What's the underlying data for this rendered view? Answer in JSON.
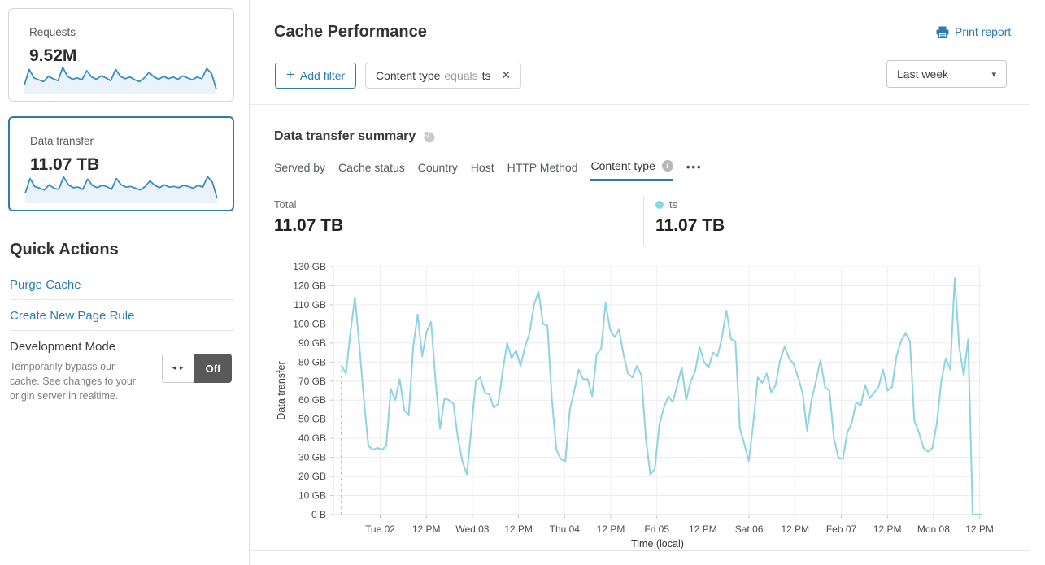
{
  "app": {
    "accent": "#2c7cb0",
    "chart_line_color": "#8ed3e4",
    "sparkline_color": "#3b8dc4"
  },
  "icons": {
    "plus_glyph": "+",
    "close_glyph": "✕",
    "caret_glyph": "▾",
    "toggle_arrows_glyph": "◂ ▸",
    "more_glyph": "•••",
    "info_glyph": "i"
  },
  "sidebar": {
    "cards": [
      {
        "label": "Requests",
        "value": "9.52M",
        "selected": false,
        "sparkline": [
          30,
          85,
          55,
          48,
          42,
          60,
          52,
          45,
          92,
          60,
          50,
          55,
          48,
          80,
          58,
          50,
          62,
          55,
          45,
          85,
          60,
          52,
          58,
          48,
          42,
          55,
          75,
          58,
          50,
          60,
          52,
          58,
          50,
          62,
          55,
          48,
          58,
          52,
          88,
          70,
          15
        ]
      },
      {
        "label": "Data transfer",
        "value": "11.07 TB",
        "selected": true,
        "sparkline": [
          32,
          84,
          56,
          50,
          44,
          62,
          50,
          46,
          90,
          62,
          52,
          54,
          46,
          82,
          60,
          52,
          60,
          56,
          46,
          84,
          62,
          54,
          56,
          50,
          44,
          56,
          76,
          60,
          52,
          62,
          54,
          56,
          52,
          60,
          56,
          50,
          60,
          54,
          90,
          72,
          14
        ]
      }
    ],
    "quick_actions": {
      "title": "Quick Actions",
      "links": [
        {
          "label": "Purge Cache"
        },
        {
          "label": "Create New Page Rule"
        }
      ],
      "development_mode": {
        "title": "Development Mode",
        "description": "Temporarily bypass our cache. See changes to your origin server in realtime.",
        "toggle_state": "Off"
      }
    }
  },
  "main": {
    "title": "Cache Performance",
    "print_report_label": "Print report",
    "filters": {
      "add_label": "Add filter",
      "chip": {
        "field": "Content type",
        "operator": "equals",
        "value": "ts"
      }
    },
    "time_range_selected": "Last week",
    "summary": {
      "title": "Data transfer summary",
      "tabs": [
        "Served by",
        "Cache status",
        "Country",
        "Host",
        "HTTP Method",
        "Content type"
      ],
      "active_tab": "Content type",
      "total": {
        "label": "Total",
        "value": "11.07 TB"
      },
      "legend": {
        "label": "ts",
        "value": "11.07 TB"
      }
    }
  },
  "chart_data": {
    "type": "line",
    "title": "Data transfer summary — ts",
    "xlabel": "Time (local)",
    "ylabel": "Data transfer",
    "unit": "GB",
    "ylim": [
      0,
      130
    ],
    "grid": true,
    "leading_gap_dashed": true,
    "y_ticks": [
      "0 B",
      "10 GB",
      "20 GB",
      "30 GB",
      "40 GB",
      "50 GB",
      "60 GB",
      "70 GB",
      "80 GB",
      "90 GB",
      "100 GB",
      "110 GB",
      "120 GB",
      "130 GB"
    ],
    "x_ticks": [
      "Tue 02",
      "12 PM",
      "Wed 03",
      "12 PM",
      "Thu 04",
      "12 PM",
      "Fri 05",
      "12 PM",
      "Sat 06",
      "12 PM",
      "Feb 07",
      "12 PM",
      "Mon 08",
      "12 PM"
    ],
    "series": [
      {
        "name": "ts",
        "values": [
          78,
          74,
          96,
          114,
          88,
          60,
          36,
          34,
          35,
          34,
          36,
          66,
          60,
          71,
          55,
          52,
          88,
          105,
          83,
          96,
          101,
          70,
          45,
          61,
          60,
          58,
          40,
          28,
          21,
          45,
          70,
          72,
          64,
          63,
          56,
          58,
          75,
          90,
          82,
          86,
          78,
          88,
          95,
          110,
          117,
          100,
          99,
          60,
          34,
          29,
          28,
          55,
          65,
          76,
          71,
          71,
          62,
          84,
          87,
          111,
          97,
          93,
          97,
          84,
          74,
          72,
          78,
          73,
          40,
          21,
          24,
          47,
          56,
          62,
          59,
          68,
          77,
          60,
          70,
          75,
          88,
          80,
          77,
          85,
          83,
          93,
          107,
          92,
          91,
          45,
          37,
          28,
          48,
          72,
          69,
          74,
          64,
          68,
          81,
          88,
          82,
          79,
          72,
          64,
          44,
          60,
          70,
          81,
          67,
          65,
          40,
          30,
          29,
          43,
          48,
          59,
          57,
          68,
          61,
          64,
          67,
          76,
          65,
          67,
          83,
          91,
          95,
          91,
          49,
          43,
          35,
          33,
          35,
          48,
          70,
          82,
          76,
          124,
          88,
          73,
          92,
          0,
          0,
          0
        ]
      }
    ]
  }
}
